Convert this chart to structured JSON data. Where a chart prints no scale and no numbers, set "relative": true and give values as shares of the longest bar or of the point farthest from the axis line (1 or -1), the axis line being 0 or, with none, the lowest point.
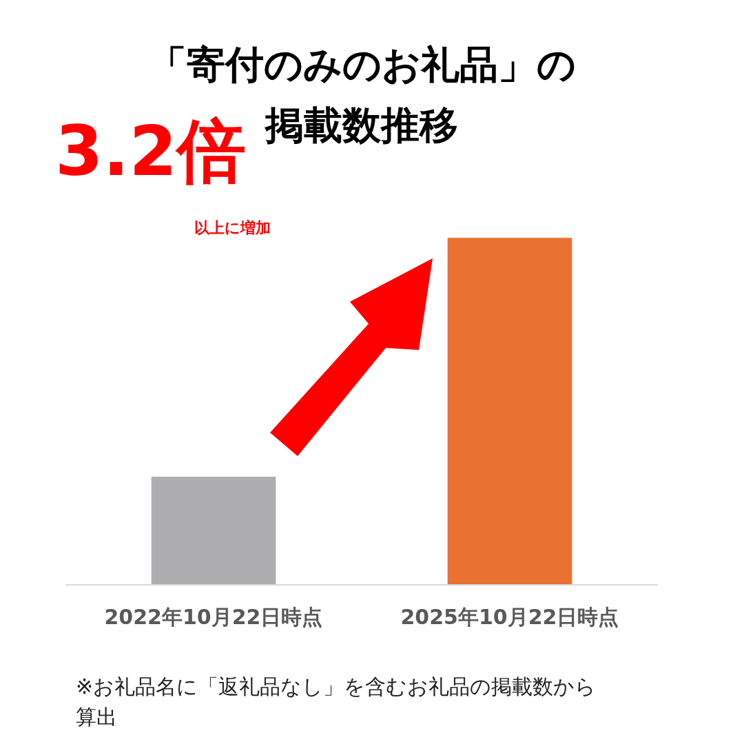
{
  "chart_data": {
    "type": "bar",
    "title": "「寄付のみのお礼品」の掲載数推移",
    "categories": [
      "2022年10月22日時点",
      "2025年10月22日時点"
    ],
    "values": [
      0.31,
      1
    ],
    "colors": [
      "#aeadb0",
      "#e97132"
    ],
    "relative": true,
    "legend": false,
    "annotations": [
      "3.2倍",
      "以上に増加",
      "※お礼品名に「返礼品なし」を含むお礼品の掲載数から算出"
    ]
  }
}
